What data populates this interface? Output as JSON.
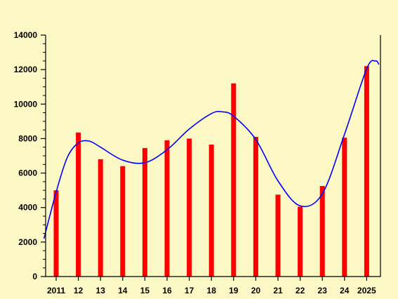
{
  "chart_data": {
    "type": "bar",
    "categories": [
      "2011",
      "12",
      "13",
      "14",
      "15",
      "16",
      "17",
      "18",
      "19",
      "20",
      "21",
      "22",
      "23",
      "24",
      "2025"
    ],
    "values": [
      5000,
      8350,
      6800,
      6400,
      7450,
      7900,
      8000,
      7650,
      11200,
      8100,
      4750,
      4050,
      5250,
      8050,
      12200
    ],
    "title": "",
    "xlabel": "",
    "ylabel": "",
    "ylim": [
      0,
      14000
    ],
    "yticks": [
      "0",
      "2000",
      "4000",
      "6000",
      "8000",
      "10000",
      "12000",
      "14000"
    ],
    "grid": false,
    "legend": "none",
    "trend_line": {
      "type": "smooth-fit",
      "points": [
        {
          "x": 2010.45,
          "y": 2200
        },
        {
          "x": 2011,
          "y": 4900
        },
        {
          "x": 2011.5,
          "y": 6900
        },
        {
          "x": 2012,
          "y": 7750
        },
        {
          "x": 2012.5,
          "y": 7850
        },
        {
          "x": 2013,
          "y": 7500
        },
        {
          "x": 2014,
          "y": 6750
        },
        {
          "x": 2015,
          "y": 6600
        },
        {
          "x": 2016,
          "y": 7350
        },
        {
          "x": 2017,
          "y": 8550
        },
        {
          "x": 2018,
          "y": 9450
        },
        {
          "x": 2018.5,
          "y": 9550
        },
        {
          "x": 2019,
          "y": 9300
        },
        {
          "x": 2020,
          "y": 7950
        },
        {
          "x": 2021,
          "y": 5550
        },
        {
          "x": 2022,
          "y": 4100
        },
        {
          "x": 2023,
          "y": 4800
        },
        {
          "x": 2024,
          "y": 8250
        },
        {
          "x": 2025,
          "y": 12050
        },
        {
          "x": 2025.4,
          "y": 12500
        },
        {
          "x": 2025.55,
          "y": 12300
        }
      ]
    },
    "colors": {
      "background": "#fcf8c6",
      "bars": "#ff0000",
      "line": "#0000ff",
      "axis": "#000000"
    }
  }
}
